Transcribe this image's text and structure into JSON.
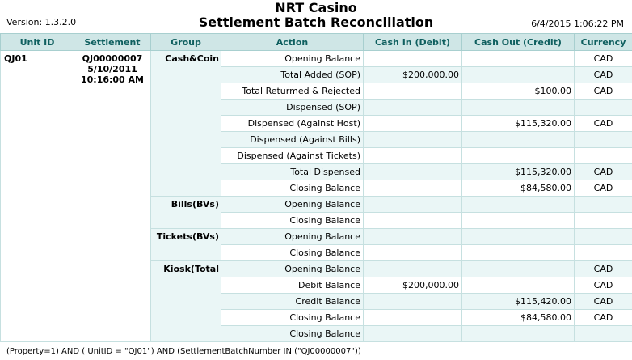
{
  "header": {
    "version": "Version: 1.3.2.0",
    "title_line1": "NRT Casino",
    "title_line2": "Settlement Batch Reconciliation",
    "datetime": "6/4/2015 1:06:22 PM"
  },
  "columns": [
    "Unit ID",
    "Settlement",
    "Group",
    "Action",
    "Cash In (Debit)",
    "Cash Out (Credit)",
    "Currency"
  ],
  "unit": {
    "id": "QJ01",
    "settlement_number": "QJ00000007",
    "settlement_date": "5/10/2011",
    "settlement_time": "10:16:00 AM"
  },
  "groups": [
    {
      "name": "Cash&Coin",
      "rows": [
        {
          "action": "Opening Balance",
          "cash_in": "",
          "cash_out": "",
          "currency": "CAD"
        },
        {
          "action": "Total Added (SOP)",
          "cash_in": "$200,000.00",
          "cash_out": "",
          "currency": "CAD"
        },
        {
          "action": "Total Returmed & Rejected",
          "cash_in": "",
          "cash_out": "$100.00",
          "currency": "CAD"
        },
        {
          "action": "Dispensed (SOP)",
          "cash_in": "",
          "cash_out": "",
          "currency": ""
        },
        {
          "action": "Dispensed (Against Host)",
          "cash_in": "",
          "cash_out": "$115,320.00",
          "currency": "CAD"
        },
        {
          "action": "Dispensed (Against Bills)",
          "cash_in": "",
          "cash_out": "",
          "currency": ""
        },
        {
          "action": "Dispensed (Against Tickets)",
          "cash_in": "",
          "cash_out": "",
          "currency": ""
        },
        {
          "action": "Total Dispensed",
          "cash_in": "",
          "cash_out": "$115,320.00",
          "currency": "CAD"
        },
        {
          "action": "Closing Balance",
          "cash_in": "",
          "cash_out": "$84,580.00",
          "currency": "CAD"
        }
      ]
    },
    {
      "name": "Bills(BVs)",
      "rows": [
        {
          "action": "Opening Balance",
          "cash_in": "",
          "cash_out": "",
          "currency": ""
        },
        {
          "action": "Closing Balance",
          "cash_in": "",
          "cash_out": "",
          "currency": ""
        }
      ]
    },
    {
      "name": "Tickets(BVs)",
      "rows": [
        {
          "action": "Opening Balance",
          "cash_in": "",
          "cash_out": "",
          "currency": ""
        },
        {
          "action": "Closing Balance",
          "cash_in": "",
          "cash_out": "",
          "currency": ""
        }
      ]
    },
    {
      "name": "Kiosk(Total",
      "rows": [
        {
          "action": "Opening Balance",
          "cash_in": "",
          "cash_out": "",
          "currency": "CAD"
        },
        {
          "action": "Debit Balance",
          "cash_in": "$200,000.00",
          "cash_out": "",
          "currency": "CAD"
        },
        {
          "action": "Credit Balance",
          "cash_in": "",
          "cash_out": "$115,420.00",
          "currency": "CAD"
        },
        {
          "action": "Closing Balance",
          "cash_in": "",
          "cash_out": "$84,580.00",
          "currency": "CAD"
        },
        {
          "action": "Closing Balance",
          "cash_in": "",
          "cash_out": "",
          "currency": ""
        }
      ]
    }
  ],
  "footer": {
    "query": "(Property=1) AND ( UnitID = \"QJ01\")  AND (SettlementBatchNumber IN (\"QJ00000007\"))"
  }
}
